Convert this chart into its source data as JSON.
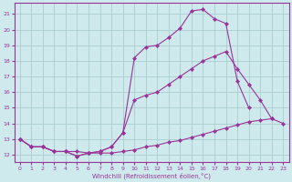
{
  "xlabel": "Windchill (Refroidissement éolien,°C)",
  "background_color": "#ceeaec",
  "grid_color": "#aacdd0",
  "line_color": "#993399",
  "xlim": [
    -0.5,
    23.5
  ],
  "ylim": [
    11.5,
    21.7
  ],
  "xticks": [
    0,
    1,
    2,
    3,
    4,
    5,
    6,
    7,
    8,
    9,
    10,
    11,
    12,
    13,
    14,
    15,
    16,
    17,
    18,
    19,
    20,
    21,
    22,
    23
  ],
  "yticks": [
    12,
    13,
    14,
    15,
    16,
    17,
    18,
    19,
    20,
    21
  ],
  "line1_x": [
    0,
    1,
    2,
    3,
    4,
    5,
    6,
    7,
    8,
    9,
    10,
    11,
    12,
    13,
    14,
    15,
    16,
    17,
    18,
    19,
    20,
    21
  ],
  "line1_y": [
    13.0,
    12.5,
    12.5,
    12.2,
    12.2,
    11.9,
    12.1,
    12.2,
    12.5,
    13.4,
    18.2,
    18.9,
    19.0,
    19.5,
    20.1,
    21.2,
    21.3,
    20.7,
    20.4,
    16.7,
    15.0,
    null
  ],
  "line2_x": [
    0,
    1,
    2,
    3,
    4,
    5,
    6,
    7,
    8,
    9,
    10,
    11,
    12,
    13,
    14,
    15,
    16,
    17,
    18,
    19,
    20,
    21,
    22,
    23
  ],
  "line2_y": [
    13.0,
    12.5,
    12.5,
    12.2,
    12.2,
    11.9,
    12.1,
    12.2,
    12.5,
    13.4,
    15.5,
    15.8,
    16.0,
    16.5,
    17.0,
    17.5,
    18.0,
    18.3,
    18.6,
    17.5,
    16.5,
    15.5,
    14.3,
    null
  ],
  "line3_x": [
    0,
    1,
    2,
    3,
    4,
    5,
    6,
    7,
    8,
    9,
    10,
    11,
    12,
    13,
    14,
    15,
    16,
    17,
    18,
    19,
    20,
    21,
    22,
    23
  ],
  "line3_y": [
    13.0,
    12.5,
    12.5,
    12.2,
    12.2,
    12.2,
    12.1,
    12.1,
    12.1,
    12.2,
    12.3,
    12.5,
    12.6,
    12.8,
    12.9,
    13.1,
    13.3,
    13.5,
    13.7,
    13.9,
    14.1,
    14.2,
    14.3,
    14.0
  ]
}
